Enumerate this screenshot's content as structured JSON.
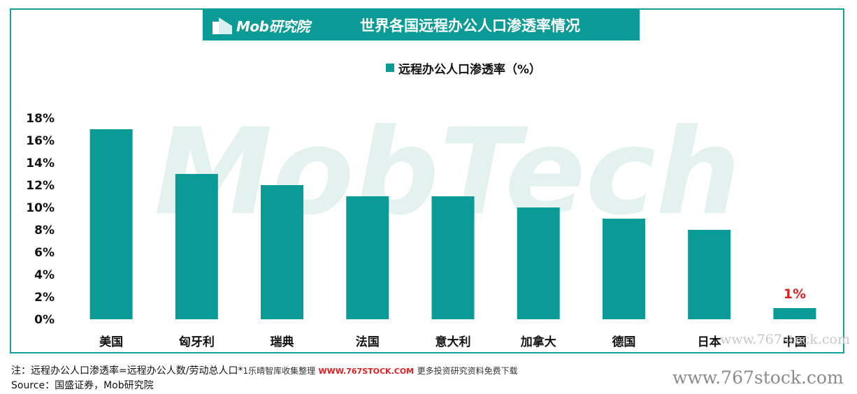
{
  "header": {
    "logo": "Mob研究院",
    "title": "世界各国远程办公人口渗透率情况"
  },
  "legend": {
    "label": "远程办公人口渗透率（%）"
  },
  "chart_data": {
    "type": "bar",
    "categories": [
      "美国",
      "匈牙利",
      "瑞典",
      "法国",
      "意大利",
      "加拿大",
      "德国",
      "日本",
      "中国"
    ],
    "series": [
      {
        "name": "远程办公人口渗透率（%）",
        "values": [
          17,
          13,
          12,
          11,
          11,
          10,
          9,
          8,
          1
        ],
        "color": "#0b9b97"
      }
    ],
    "ylim": [
      0,
      18
    ],
    "yticks": [
      "0%",
      "2%",
      "4%",
      "6%",
      "8%",
      "10%",
      "12%",
      "14%",
      "16%",
      "18%"
    ],
    "annotations": [
      {
        "category": "中国",
        "text": "1%",
        "color": "#e02020"
      }
    ],
    "watermark": "MobTech",
    "grid": false
  },
  "footer": {
    "note": "注：远程办公人口渗透率=远程办公人数/劳动总人口*",
    "note_extra_1": "1乐晴智库收集整理",
    "note_site": "WWW.767STOCK.COM",
    "note_extra_2": "更多投资研究资料免费下载",
    "source": "Source：国盛证券，Mob研究院"
  },
  "watermarks": {
    "bottom": "www.767stock.com",
    "mid": "www.767stock.com"
  }
}
